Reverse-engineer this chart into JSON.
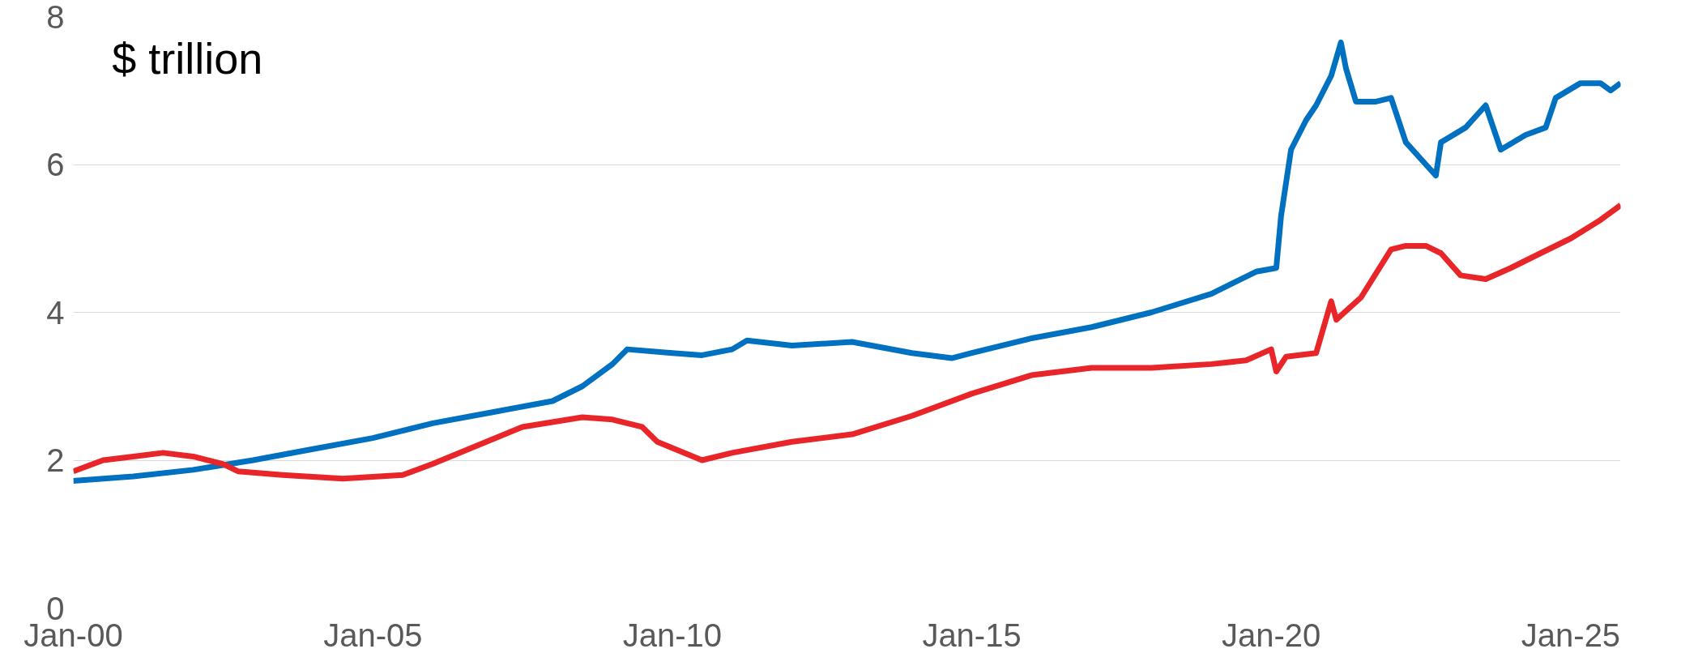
{
  "chart_data": {
    "type": "line",
    "annotations": [
      "$ trillion"
    ],
    "xlim": [
      "2000-01",
      "2025-11"
    ],
    "ylim": [
      0,
      8
    ],
    "yticks": [
      0,
      2,
      4,
      6,
      8
    ],
    "xticks": [
      {
        "value": "2000-01",
        "label": "Jan-00"
      },
      {
        "value": "2005-01",
        "label": "Jan-05"
      },
      {
        "value": "2010-01",
        "label": "Jan-10"
      },
      {
        "value": "2015-01",
        "label": "Jan-15"
      },
      {
        "value": "2020-01",
        "label": "Jan-20"
      },
      {
        "value": "2025-01",
        "label": "Jan-25"
      }
    ],
    "grid": "y",
    "marker": "none",
    "line_style": "solid",
    "series": [
      {
        "color": "#0070c0",
        "x": [
          "2000-01",
          "2001-01",
          "2002-01",
          "2003-01",
          "2004-01",
          "2005-01",
          "2006-01",
          "2007-01",
          "2008-01",
          "2008-07",
          "2009-01",
          "2009-04",
          "2010-01",
          "2010-07",
          "2011-01",
          "2011-04",
          "2012-01",
          "2013-01",
          "2014-01",
          "2014-09",
          "2015-01",
          "2016-01",
          "2017-01",
          "2018-01",
          "2019-01",
          "2019-10",
          "2020-02",
          "2020-03",
          "2020-05",
          "2020-08",
          "2020-10",
          "2021-01",
          "2021-03",
          "2021-04",
          "2021-06",
          "2021-10",
          "2022-01",
          "2022-04",
          "2022-08",
          "2022-10",
          "2022-11",
          "2023-04",
          "2023-08",
          "2023-11",
          "2024-04",
          "2024-08",
          "2024-10",
          "2025-03",
          "2025-07",
          "2025-09",
          "2025-11"
        ],
        "values": [
          1.72,
          1.78,
          1.87,
          2.0,
          2.15,
          2.3,
          2.5,
          2.65,
          2.8,
          3.0,
          3.3,
          3.5,
          3.45,
          3.42,
          3.5,
          3.62,
          3.55,
          3.6,
          3.45,
          3.38,
          3.45,
          3.65,
          3.8,
          4.0,
          4.25,
          4.55,
          4.6,
          5.3,
          6.2,
          6.6,
          6.8,
          7.2,
          7.65,
          7.3,
          6.85,
          6.85,
          6.9,
          6.3,
          6.0,
          5.85,
          6.3,
          6.5,
          6.8,
          6.2,
          6.4,
          6.5,
          6.9,
          7.1,
          7.1,
          7.0,
          7.1
        ]
      },
      {
        "color": "#e8262a",
        "x": [
          "2000-01",
          "2000-07",
          "2001-01",
          "2001-07",
          "2002-01",
          "2002-07",
          "2002-10",
          "2003-07",
          "2004-07",
          "2005-07",
          "2006-01",
          "2006-10",
          "2007-07",
          "2008-07",
          "2009-01",
          "2009-07",
          "2009-10",
          "2010-07",
          "2011-01",
          "2012-01",
          "2013-01",
          "2014-01",
          "2015-01",
          "2016-01",
          "2017-01",
          "2018-01",
          "2019-01",
          "2019-08",
          "2020-01",
          "2020-02",
          "2020-04",
          "2020-10",
          "2021-01",
          "2021-02",
          "2021-07",
          "2022-01",
          "2022-04",
          "2022-08",
          "2022-11",
          "2023-03",
          "2023-08",
          "2024-01",
          "2024-07",
          "2025-01",
          "2025-07",
          "2025-11"
        ],
        "values": [
          1.85,
          2.0,
          2.05,
          2.1,
          2.05,
          1.95,
          1.85,
          1.8,
          1.75,
          1.8,
          1.95,
          2.2,
          2.45,
          2.58,
          2.55,
          2.45,
          2.25,
          2.0,
          2.1,
          2.25,
          2.35,
          2.6,
          2.9,
          3.15,
          3.25,
          3.25,
          3.3,
          3.35,
          3.5,
          3.2,
          3.4,
          3.45,
          4.15,
          3.9,
          4.2,
          4.85,
          4.9,
          4.9,
          4.8,
          4.5,
          4.45,
          4.6,
          4.8,
          5.0,
          5.25,
          5.45
        ]
      }
    ]
  }
}
